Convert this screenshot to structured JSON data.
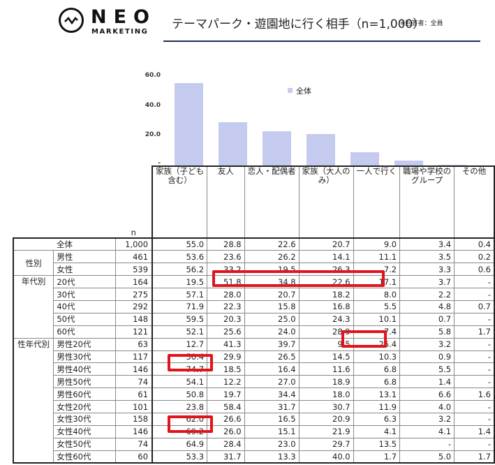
{
  "header": {
    "logo_main": "NEO",
    "logo_sub": "MARKETING",
    "title": "テーマパーク・遊園地に行く相手（n=1,000）",
    "note": "※回答者：全員"
  },
  "chart_data": {
    "type": "bar",
    "title": "テーマパーク・遊園地に行く相手（n=1,000）",
    "legend": [
      "全体"
    ],
    "legend_position": "top-center",
    "categories": [
      "家族（子ども含む）",
      "友人",
      "恋人・配偶者",
      "家族（大人のみ）",
      "一人で行く",
      "職場や学校のグループ",
      "その他"
    ],
    "series": [
      {
        "name": "全体",
        "values": [
          55.0,
          28.8,
          22.6,
          20.7,
          9.0,
          3.4,
          0.4
        ],
        "color": "#c5cbef"
      }
    ],
    "ylim": [
      0,
      60
    ],
    "yticks": [
      "-",
      "20.0",
      "40.0",
      "60.0"
    ],
    "grid": false,
    "xlabel": "",
    "ylabel": ""
  },
  "table": {
    "n_label": "n",
    "columns": [
      "家族（子ども含む）",
      "友人",
      "恋人・配偶者",
      "家族（大人のみ）",
      "一人で行く",
      "職場や学校のグループ",
      "その他"
    ],
    "column_lines": [
      [
        "家族（子ども",
        "含む）"
      ],
      [
        "友人"
      ],
      [
        "恋人・配偶者"
      ],
      [
        "家族（大人の",
        "み）"
      ],
      [
        "一人で行く"
      ],
      [
        "職場や学校の",
        "グループ"
      ],
      [
        "その他"
      ]
    ],
    "groups": [
      {
        "label": "全体",
        "rows": [
          {
            "label": "全体",
            "n": "1,000",
            "values": [
              "55.0",
              "28.8",
              "22.6",
              "20.7",
              "9.0",
              "3.4",
              "0.4"
            ]
          }
        ]
      },
      {
        "label": "性別",
        "rows": [
          {
            "label": "男性",
            "n": "461",
            "values": [
              "53.6",
              "23.6",
              "26.2",
              "14.1",
              "11.1",
              "3.5",
              "0.2"
            ]
          },
          {
            "label": "女性",
            "n": "539",
            "values": [
              "56.2",
              "33.2",
              "19.5",
              "26.3",
              "7.2",
              "3.3",
              "0.6"
            ]
          }
        ]
      },
      {
        "label": "年代別",
        "rows": [
          {
            "label": "20代",
            "n": "164",
            "values": [
              "19.5",
              "51.8",
              "34.8",
              "22.6",
              "17.1",
              "3.7",
              "-"
            ]
          },
          {
            "label": "30代",
            "n": "275",
            "values": [
              "57.1",
              "28.0",
              "20.7",
              "18.2",
              "8.0",
              "2.2",
              "-"
            ]
          },
          {
            "label": "40代",
            "n": "292",
            "values": [
              "71.9",
              "22.3",
              "15.8",
              "16.8",
              "5.5",
              "4.8",
              "0.7"
            ]
          },
          {
            "label": "50代",
            "n": "148",
            "values": [
              "59.5",
              "20.3",
              "25.0",
              "24.3",
              "10.1",
              "0.7",
              "-"
            ]
          },
          {
            "label": "60代",
            "n": "121",
            "values": [
              "52.1",
              "25.6",
              "24.0",
              "28.9",
              "7.4",
              "5.8",
              "1.7"
            ]
          }
        ]
      },
      {
        "label": "性年代別",
        "rows": [
          {
            "label": "男性20代",
            "n": "63",
            "values": [
              "12.7",
              "41.3",
              "39.7",
              "9.5",
              "25.4",
              "3.2",
              "-"
            ]
          },
          {
            "label": "男性30代",
            "n": "117",
            "values": [
              "50.4",
              "29.9",
              "26.5",
              "14.5",
              "10.3",
              "0.9",
              "-"
            ]
          },
          {
            "label": "男性40代",
            "n": "146",
            "values": [
              "74.7",
              "18.5",
              "16.4",
              "11.6",
              "6.8",
              "5.5",
              "-"
            ]
          },
          {
            "label": "男性50代",
            "n": "74",
            "values": [
              "54.1",
              "12.2",
              "27.0",
              "18.9",
              "6.8",
              "1.4",
              "-"
            ]
          },
          {
            "label": "男性60代",
            "n": "61",
            "values": [
              "50.8",
              "19.7",
              "34.4",
              "18.0",
              "13.1",
              "6.6",
              "1.6"
            ]
          },
          {
            "label": "女性20代",
            "n": "101",
            "values": [
              "23.8",
              "58.4",
              "31.7",
              "30.7",
              "11.9",
              "4.0",
              "-"
            ]
          },
          {
            "label": "女性30代",
            "n": "158",
            "values": [
              "62.0",
              "26.6",
              "16.5",
              "20.9",
              "6.3",
              "3.2",
              "-"
            ]
          },
          {
            "label": "女性40代",
            "n": "146",
            "values": [
              "69.2",
              "26.0",
              "15.1",
              "21.9",
              "4.1",
              "4.1",
              "1.4"
            ]
          },
          {
            "label": "女性50代",
            "n": "74",
            "values": [
              "64.9",
              "28.4",
              "23.0",
              "29.7",
              "13.5",
              "-",
              "-"
            ]
          },
          {
            "label": "女性60代",
            "n": "60",
            "values": [
              "53.3",
              "31.7",
              "13.3",
              "40.0",
              "1.7",
              "5.0",
              "1.7"
            ]
          }
        ]
      }
    ],
    "highlights": [
      {
        "row": "20代",
        "columns": [
          "友人",
          "恋人・配偶者",
          "家族（大人のみ）",
          "一人で行く"
        ],
        "color": "#e0141c"
      },
      {
        "row": "男性20代",
        "columns": [
          "一人で行く"
        ],
        "color": "#e0141c"
      },
      {
        "row": "男性40代",
        "columns": [
          "家族（子ども含む）"
        ],
        "color": "#e0141c"
      },
      {
        "row": "女性40代",
        "columns": [
          "家族（子ども含む）"
        ],
        "color": "#e0141c"
      }
    ]
  }
}
